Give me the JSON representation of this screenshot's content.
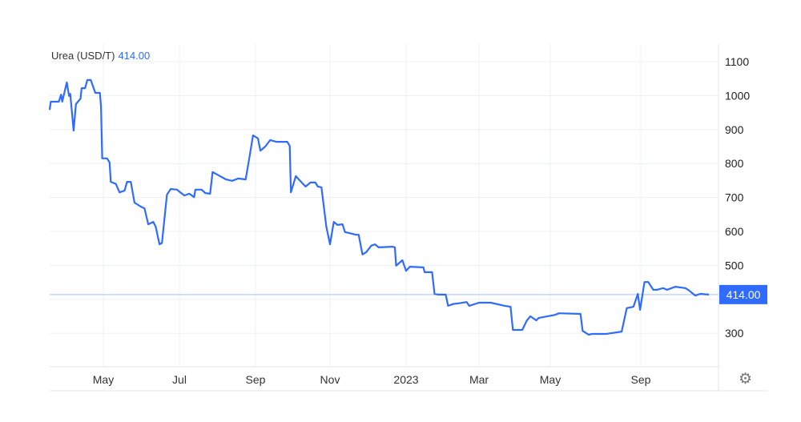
{
  "legend": {
    "name": "Urea (USD/T)",
    "value": "414.00"
  },
  "settings_icon": "gear-icon",
  "colors": {
    "line": "#2f6bff",
    "badge": "#2f6bff",
    "current_line": "#b9ccff",
    "grid": "#edf0f3"
  },
  "chart_data": {
    "type": "line",
    "title": "",
    "xlabel": "",
    "ylabel": "",
    "ylim": [
      200,
      1100
    ],
    "y_ticks": [
      300,
      400,
      500,
      600,
      700,
      800,
      900,
      1000,
      1100
    ],
    "y_tick_labels": [
      "300",
      "",
      "500",
      "600",
      "700",
      "800",
      "900",
      "1000",
      "1100"
    ],
    "x_ticks": [
      {
        "date": "2022-05-01",
        "label": "May"
      },
      {
        "date": "2022-07-01",
        "label": "Jul"
      },
      {
        "date": "2022-09-01",
        "label": "Sep"
      },
      {
        "date": "2022-11-01",
        "label": "Nov"
      },
      {
        "date": "2023-01-01",
        "label": "2023"
      },
      {
        "date": "2023-03-01",
        "label": "Mar"
      },
      {
        "date": "2023-05-01",
        "label": "May"
      },
      {
        "date": "2023-09-01",
        "label": "Sep"
      }
    ],
    "grid": true,
    "current_value": 414.0,
    "current_label": "414.00",
    "series": [
      {
        "points": [
          [
            "2022-03-15",
            958
          ],
          [
            "2022-03-16",
            982
          ],
          [
            "2022-03-23",
            982
          ],
          [
            "2022-03-25",
            1003
          ],
          [
            "2022-03-26",
            982
          ],
          [
            "2022-03-30",
            1039
          ],
          [
            "2022-04-01",
            999
          ],
          [
            "2022-04-02",
            1005
          ],
          [
            "2022-04-05",
            897
          ],
          [
            "2022-04-07",
            975
          ],
          [
            "2022-04-11",
            991
          ],
          [
            "2022-04-12",
            1022
          ],
          [
            "2022-04-15",
            1022
          ],
          [
            "2022-04-17",
            1046
          ],
          [
            "2022-04-20",
            1046
          ],
          [
            "2022-04-24",
            1008
          ],
          [
            "2022-04-28",
            1008
          ],
          [
            "2022-04-29",
            968
          ],
          [
            "2022-04-30",
            815
          ],
          [
            "2022-05-04",
            815
          ],
          [
            "2022-05-06",
            803
          ],
          [
            "2022-05-07",
            746
          ],
          [
            "2022-05-11",
            740
          ],
          [
            "2022-05-14",
            715
          ],
          [
            "2022-05-18",
            720
          ],
          [
            "2022-05-20",
            746
          ],
          [
            "2022-05-23",
            746
          ],
          [
            "2022-05-26",
            685
          ],
          [
            "2022-05-31",
            673
          ],
          [
            "2022-06-03",
            668
          ],
          [
            "2022-06-06",
            621
          ],
          [
            "2022-06-10",
            628
          ],
          [
            "2022-06-12",
            614
          ],
          [
            "2022-06-15",
            562
          ],
          [
            "2022-06-17",
            566
          ],
          [
            "2022-06-21",
            708
          ],
          [
            "2022-06-24",
            725
          ],
          [
            "2022-06-29",
            723
          ],
          [
            "2022-06-30",
            720
          ],
          [
            "2022-07-05",
            706
          ],
          [
            "2022-07-09",
            711
          ],
          [
            "2022-07-13",
            701
          ],
          [
            "2022-07-14",
            723
          ],
          [
            "2022-07-19",
            723
          ],
          [
            "2022-07-22",
            713
          ],
          [
            "2022-07-26",
            711
          ],
          [
            "2022-07-28",
            775
          ],
          [
            "2022-08-01",
            767
          ],
          [
            "2022-08-08",
            753
          ],
          [
            "2022-08-13",
            749
          ],
          [
            "2022-08-18",
            756
          ],
          [
            "2022-08-24",
            753
          ],
          [
            "2022-08-27",
            817
          ],
          [
            "2022-08-30",
            883
          ],
          [
            "2022-09-03",
            874
          ],
          [
            "2022-09-05",
            838
          ],
          [
            "2022-09-09",
            850
          ],
          [
            "2022-09-13",
            869
          ],
          [
            "2022-09-18",
            864
          ],
          [
            "2022-09-27",
            864
          ],
          [
            "2022-09-29",
            852
          ],
          [
            "2022-09-30",
            715
          ],
          [
            "2022-10-04",
            763
          ],
          [
            "2022-10-07",
            751
          ],
          [
            "2022-10-12",
            732
          ],
          [
            "2022-10-16",
            744
          ],
          [
            "2022-10-20",
            744
          ],
          [
            "2022-10-22",
            732
          ],
          [
            "2022-10-25",
            730
          ],
          [
            "2022-10-29",
            614
          ],
          [
            "2022-11-01",
            562
          ],
          [
            "2022-11-04",
            628
          ],
          [
            "2022-11-07",
            619
          ],
          [
            "2022-11-11",
            621
          ],
          [
            "2022-11-13",
            598
          ],
          [
            "2022-11-22",
            590
          ],
          [
            "2022-11-24",
            590
          ],
          [
            "2022-11-27",
            532
          ],
          [
            "2022-11-30",
            539
          ],
          [
            "2022-12-04",
            558
          ],
          [
            "2022-12-07",
            562
          ],
          [
            "2022-12-10",
            553
          ],
          [
            "2022-12-21",
            555
          ],
          [
            "2022-12-23",
            553
          ],
          [
            "2022-12-24",
            499
          ],
          [
            "2022-12-29",
            515
          ],
          [
            "2023-01-01",
            484
          ],
          [
            "2023-01-04",
            496
          ],
          [
            "2023-01-15",
            494
          ],
          [
            "2023-01-16",
            480
          ],
          [
            "2023-01-22",
            480
          ],
          [
            "2023-01-24",
            416
          ],
          [
            "2023-01-27",
            414
          ],
          [
            "2023-02-02",
            414
          ],
          [
            "2023-02-04",
            381
          ],
          [
            "2023-02-08",
            386
          ],
          [
            "2023-02-12",
            388
          ],
          [
            "2023-02-19",
            392
          ],
          [
            "2023-02-21",
            381
          ],
          [
            "2023-03-01",
            390
          ],
          [
            "2023-03-11",
            390
          ],
          [
            "2023-03-23",
            381
          ],
          [
            "2023-03-28",
            378
          ],
          [
            "2023-03-30",
            310
          ],
          [
            "2023-04-07",
            310
          ],
          [
            "2023-04-11",
            338
          ],
          [
            "2023-04-14",
            350
          ],
          [
            "2023-04-19",
            338
          ],
          [
            "2023-04-21",
            345
          ],
          [
            "2023-05-07",
            354
          ],
          [
            "2023-05-13",
            359
          ],
          [
            "2023-06-11",
            357
          ],
          [
            "2023-06-14",
            307
          ],
          [
            "2023-06-22",
            296
          ],
          [
            "2023-06-27",
            298
          ],
          [
            "2023-07-16",
            298
          ],
          [
            "2023-08-06",
            305
          ],
          [
            "2023-08-13",
            374
          ],
          [
            "2023-08-22",
            378
          ],
          [
            "2023-08-28",
            416
          ],
          [
            "2023-08-31",
            369
          ],
          [
            "2023-09-04",
            451
          ],
          [
            "2023-09-07",
            451
          ],
          [
            "2023-09-11",
            428
          ],
          [
            "2023-09-14",
            428
          ],
          [
            "2023-09-19",
            433
          ],
          [
            "2023-09-22",
            428
          ],
          [
            "2023-09-29",
            437
          ],
          [
            "2023-10-07",
            433
          ],
          [
            "2023-10-10",
            426
          ],
          [
            "2023-10-15",
            411
          ],
          [
            "2023-10-19",
            416
          ],
          [
            "2023-10-26",
            414
          ]
        ]
      }
    ]
  }
}
